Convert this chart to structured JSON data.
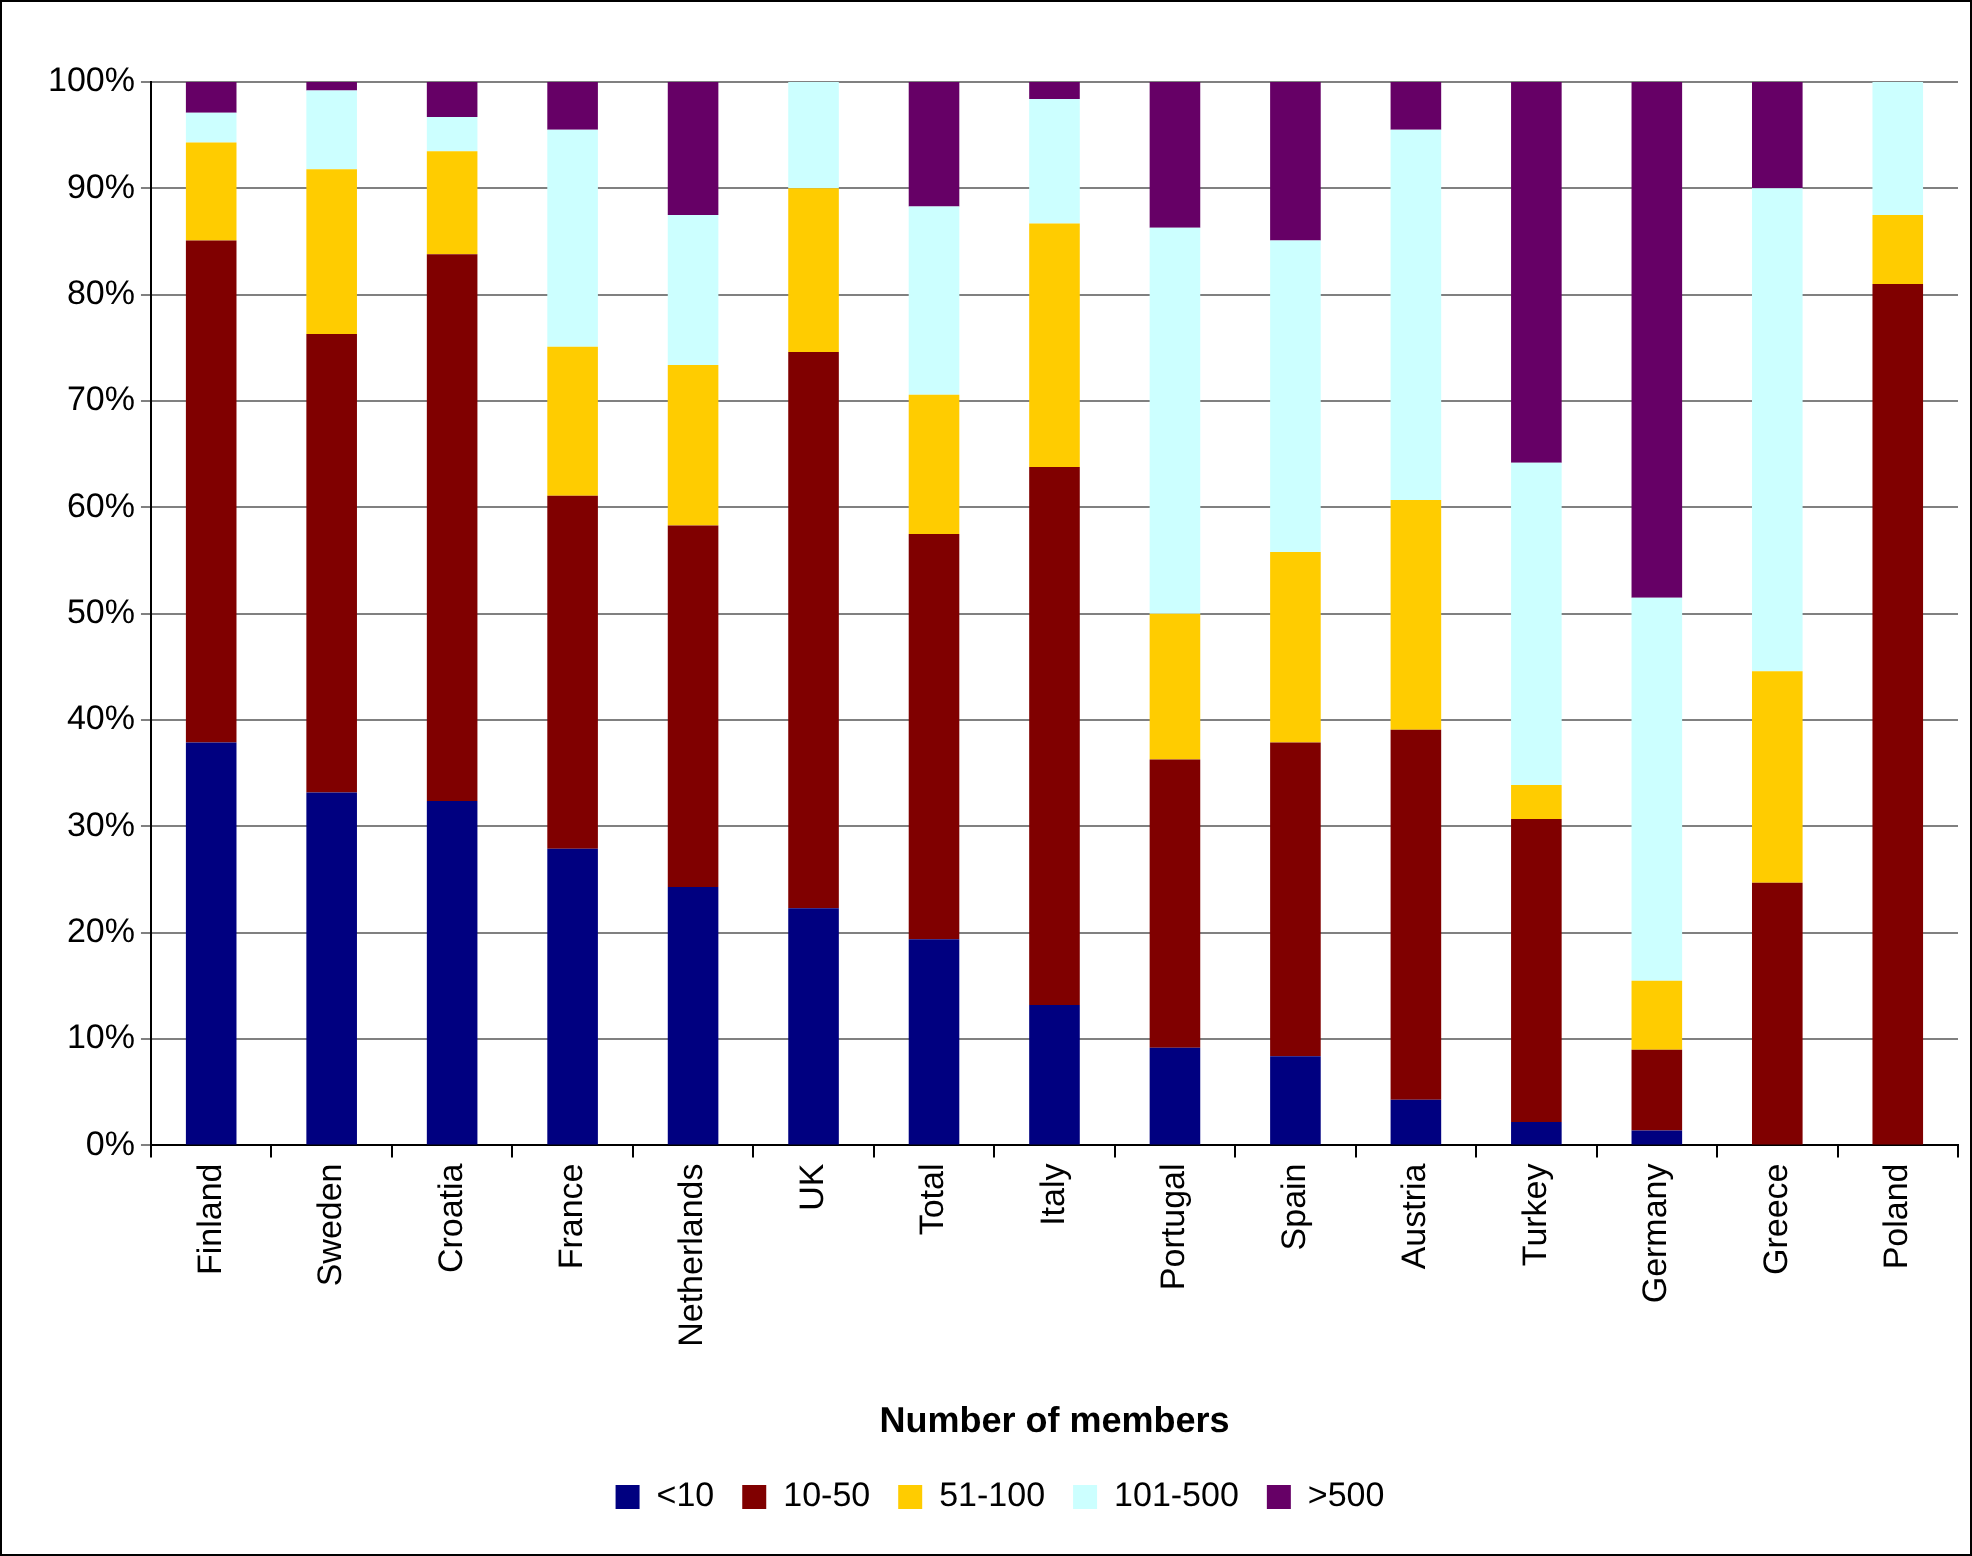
{
  "chart_data": {
    "type": "bar",
    "stacked": true,
    "xlabel": "Number of members",
    "categories": [
      "Finland",
      "Sweden",
      "Croatia",
      "France",
      "Netherlands",
      "UK",
      "Total",
      "Italy",
      "Portugal",
      "Spain",
      "Austria",
      "Turkey",
      "Germany",
      "Greece",
      "Poland"
    ],
    "series": [
      {
        "name": "<10",
        "color": "#000080",
        "values": [
          37.9,
          33.2,
          32.4,
          27.9,
          24.3,
          22.3,
          19.4,
          13.2,
          9.2,
          8.4,
          4.3,
          2.2,
          1.4,
          0,
          0
        ]
      },
      {
        "name": "10-50",
        "color": "#800000",
        "values": [
          47.2,
          43.1,
          51.4,
          33.2,
          34.0,
          52.3,
          38.1,
          50.6,
          27.1,
          29.5,
          34.8,
          28.5,
          7.6,
          24.7,
          81.0
        ]
      },
      {
        "name": "51-100",
        "color": "#ffcc00",
        "values": [
          9.2,
          15.5,
          9.7,
          14.0,
          15.1,
          15.4,
          13.1,
          22.9,
          13.7,
          17.9,
          21.6,
          3.2,
          6.5,
          19.9,
          6.5
        ]
      },
      {
        "name": "101-500",
        "color": "#ccffff",
        "values": [
          2.8,
          7.4,
          3.2,
          20.4,
          14.1,
          10.0,
          17.7,
          11.7,
          36.3,
          29.3,
          34.8,
          30.3,
          36.0,
          45.4,
          12.5
        ]
      },
      {
        "name": ">500",
        "color": "#660066",
        "values": [
          2.9,
          0.8,
          3.3,
          4.5,
          12.5,
          0,
          11.7,
          1.6,
          13.7,
          14.9,
          4.5,
          35.8,
          48.5,
          10.0,
          0
        ]
      }
    ],
    "ylim": [
      0,
      100
    ],
    "yticks": [
      {
        "value": 0,
        "label": "0%"
      },
      {
        "value": 10,
        "label": "10%"
      },
      {
        "value": 20,
        "label": "20%"
      },
      {
        "value": 30,
        "label": "30%"
      },
      {
        "value": 40,
        "label": "40%"
      },
      {
        "value": 50,
        "label": "50%"
      },
      {
        "value": 60,
        "label": "60%"
      },
      {
        "value": 70,
        "label": "70%"
      },
      {
        "value": 80,
        "label": "80%"
      },
      {
        "value": 90,
        "label": "90%"
      },
      {
        "value": 100,
        "label": "100%"
      }
    ],
    "grid": "y",
    "legend": "bottom"
  }
}
